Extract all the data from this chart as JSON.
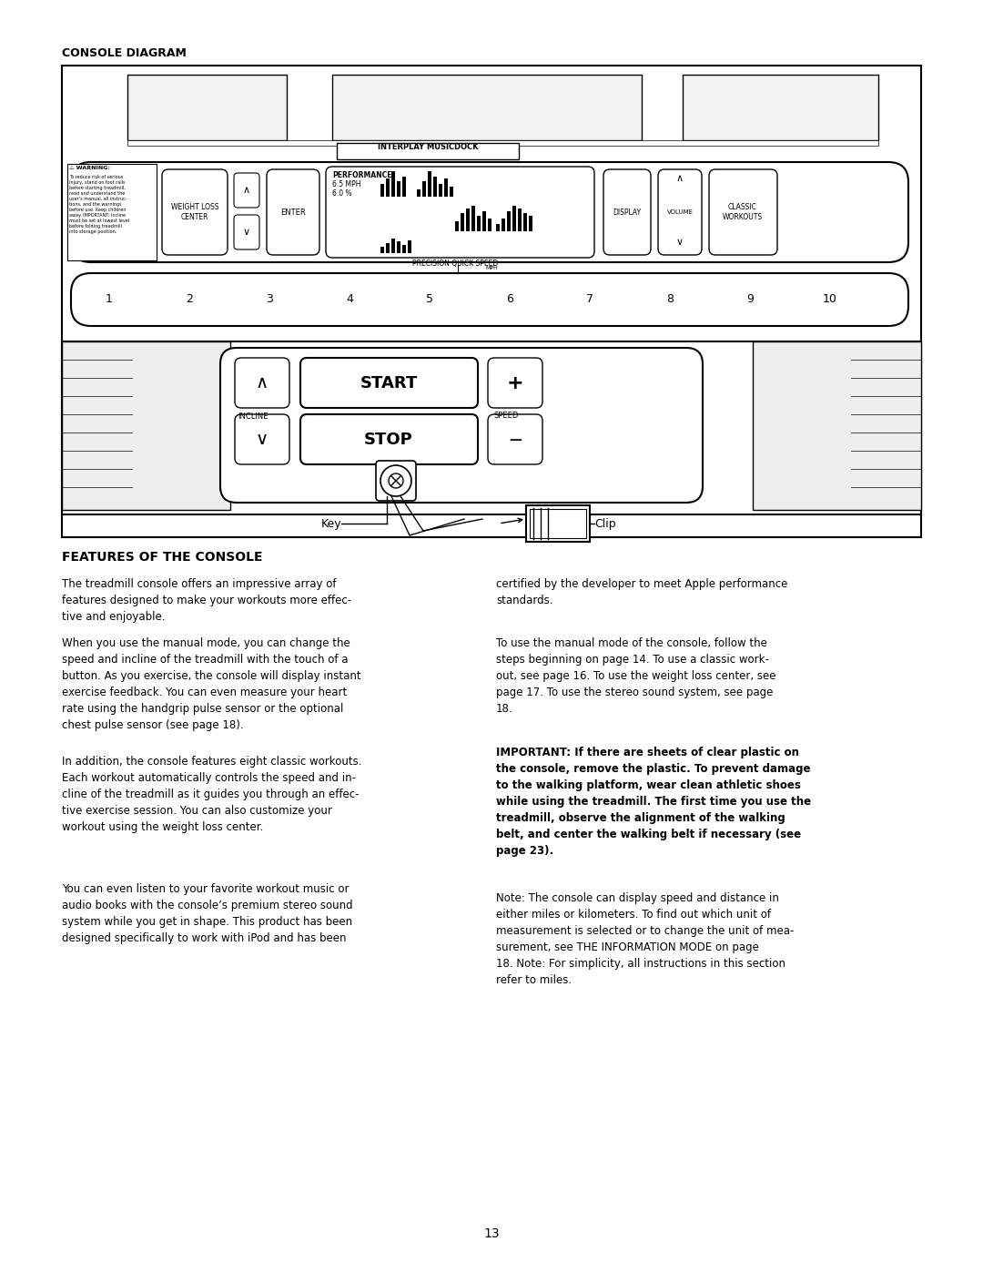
{
  "title": "CONSOLE DIAGRAM",
  "section_title": "FEATURES OF THE CONSOLE",
  "page_number": "13",
  "bg_color": "#ffffff",
  "text_color": "#000000",
  "interplay_text": "INTERPLAY MUSICDOCK",
  "warning_header": "⚠ WARNING:",
  "warning_body": "To reduce risk of serious\ninjury, stand on foot rails\nbefore starting treadmill,\nread and understand the\nuser's manual, all instruc-\ntions, and the warnings\nbefore use. Keep children\naway. IMPORTANT: Incline\nmust be set at lowest level\nbefore folding treadmill\ninto storage position.",
  "speed_buttons": [
    "1",
    "2",
    "3",
    "4",
    "5",
    "6",
    "7",
    "8",
    "9",
    "10"
  ],
  "precision_label": "PRECISION QUICK SPEED",
  "mph_label": "MPH",
  "perf_label1": "PERFORMANCE",
  "perf_label2": "6.5 MPH",
  "perf_label3": "6.0 %",
  "incline_label": "INCLINE",
  "speed_label": "SPEED",
  "start_label": "START",
  "stop_label": "STOP",
  "key_label": "Key",
  "clip_label": "Clip",
  "left_p1": "The treadmill console offers an impressive array of\nfeatures designed to make your workouts more effec-\ntive and enjoyable.",
  "left_p2": "When you use the manual mode, you can change the\nspeed and incline of the treadmill with the touch of a\nbutton. As you exercise, the console will display instant\nexercise feedback. You can even measure your heart\nrate using the handgrip pulse sensor or the optional\nchest pulse sensor (see page 18).",
  "left_p3": "In addition, the console features eight classic workouts.\nEach workout automatically controls the speed and in-\ncline of the treadmill as it guides you through an effec-\ntive exercise session. You can also customize your\nworkout using the weight loss center.",
  "left_p4": "You can even listen to your favorite workout music or\naudio books with the console’s premium stereo sound\nsystem while you get in shape. This product has been\ndesigned specifically to work with iPod and has been",
  "right_p1": "certified by the developer to meet Apple performance\nstandards.",
  "right_p2a_bold": "To use the manual mode of the console",
  "right_p2b": ", follow the\nsteps beginning on page 14. ",
  "right_p2c_bold": "To use a classic work-\nout",
  "right_p2d": ", see page 16. ",
  "right_p2e_bold": "To use the weight loss center",
  "right_p2f": ", see\npage 17. ",
  "right_p2g_bold": "To use the stereo sound system",
  "right_p2h": ", see page\n18.",
  "right_p3": "IMPORTANT: If there are sheets of clear plastic on\nthe console, remove the plastic. To prevent damage\nto the walking platform, wear clean athletic shoes\nwhile using the treadmill. The first time you use the\ntreadmill, observe the alignment of the walking\nbelt, and center the walking belt if necessary (see\npage 23).",
  "right_p4": "Note: The console can display speed and distance in\neither miles or kilometers. To find out which unit of\nmeasurement is selected or to change the unit of mea-\nsurement, see THE INFORMATION MODE on page\n18. Note: For simplicity, all instructions in this section\nrefer to miles."
}
